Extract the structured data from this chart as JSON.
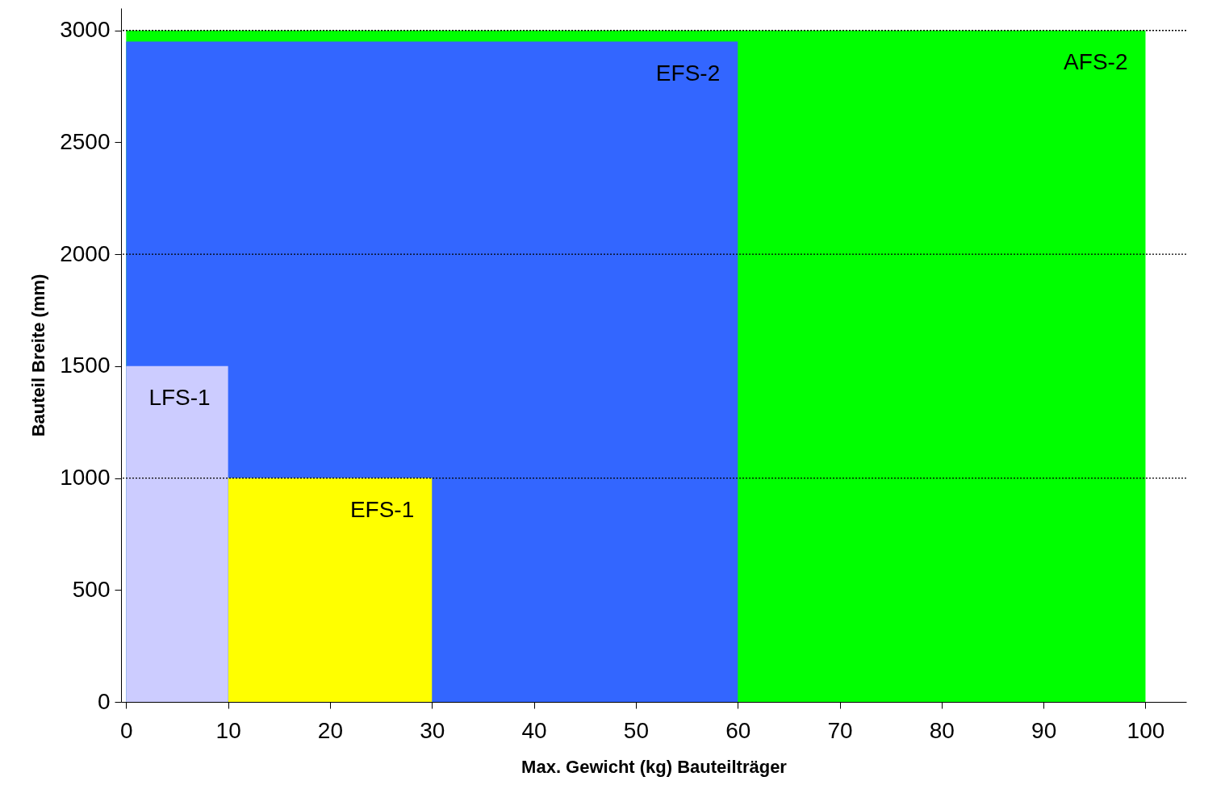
{
  "chart_data": {
    "type": "area",
    "xlabel": "Max. Gewicht (kg) Bauteilträger",
    "ylabel": "Bauteil Breite (mm)",
    "xlim": [
      -0.5,
      104
    ],
    "xticks": [
      0,
      10,
      20,
      30,
      40,
      50,
      60,
      70,
      80,
      90,
      100
    ],
    "ylim": [
      0,
      3100
    ],
    "yticks": [
      0,
      500,
      1000,
      1500,
      2000,
      2500,
      3000
    ],
    "series": [
      {
        "name": "AFS-2",
        "color": "#00ff00",
        "x": [
          0,
          100
        ],
        "values": [
          3000,
          3000
        ]
      },
      {
        "name": "EFS-2",
        "color": "#3366ff",
        "x": [
          0,
          60
        ],
        "values": [
          2950,
          2950
        ]
      },
      {
        "name": "EFS-1",
        "color": "#ffff00",
        "x": [
          10,
          30
        ],
        "values": [
          1000,
          1000
        ]
      },
      {
        "name": "LFS-1",
        "color": "#ccccff",
        "x": [
          0,
          10
        ],
        "values": [
          1500,
          1500
        ]
      }
    ],
    "ref_lines": [
      {
        "axis": "y",
        "value": 1000,
        "line_style": "dotted"
      },
      {
        "axis": "y",
        "value": 2000,
        "line_style": "dotted"
      },
      {
        "axis": "y",
        "value": 3000,
        "line_style": "dotted"
      }
    ]
  }
}
